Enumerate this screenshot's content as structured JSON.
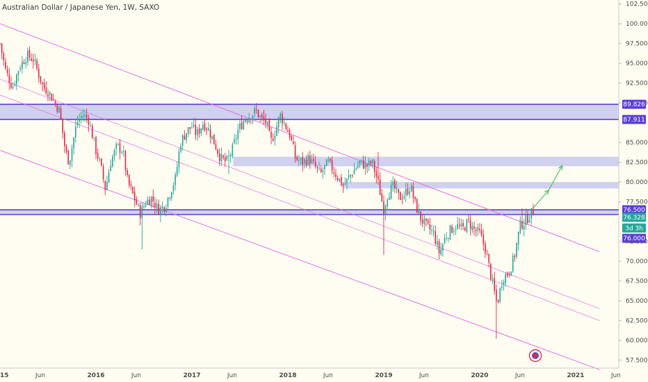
{
  "chart_data": {
    "type": "candlestick",
    "title": "Australian Dollar / Japanese Yen, 1W, SAXO",
    "y_axis": {
      "position": "right",
      "range": [
        56.5,
        103.0
      ],
      "ticks": [
        "102.500",
        "100.000",
        "97.500",
        "95.000",
        "92.500",
        "90.000",
        "85.000",
        "82.500",
        "80.000",
        "77.500",
        "72.500",
        "70.000",
        "67.500",
        "65.000",
        "62.500",
        "60.000",
        "57.500"
      ],
      "tick_values": [
        102.5,
        100,
        97.5,
        95,
        92.5,
        90,
        85,
        82.5,
        80,
        77.5,
        72.5,
        70,
        67.5,
        65,
        62.5,
        60,
        57.5
      ]
    },
    "x_axis": {
      "range": [
        2015.0,
        2021.45
      ],
      "labels": [
        "2015",
        "Jun",
        "2016",
        "Jun",
        "2017",
        "Jun",
        "2018",
        "Jun",
        "2019",
        "Jun",
        "2020",
        "Jun",
        "2021",
        "Jun"
      ],
      "positions": [
        2015.0,
        2015.42,
        2016.0,
        2016.42,
        2017.0,
        2017.42,
        2018.0,
        2018.42,
        2019.0,
        2019.42,
        2020.0,
        2020.42,
        2021.0,
        2021.42
      ]
    },
    "colors": {
      "up": "#26a69a",
      "down": "#e0284a",
      "zone_fill": "#c8c8ee",
      "zone_border": "#5a3ed6",
      "channel": "#e36ee3",
      "arrow": "#43b96b",
      "badge_purple": "#5a3ed6",
      "badge_green": "#26a69a"
    },
    "price_badges": [
      {
        "label": "89.826",
        "value": 89.826,
        "color": "#5a3ed6"
      },
      {
        "label": "87.911",
        "value": 87.911,
        "color": "#5a3ed6"
      },
      {
        "label": "76.500",
        "value": 76.5,
        "color": "#5a3ed6"
      },
      {
        "label": "76.328",
        "value": 75.55,
        "color": "#26a69a"
      },
      {
        "label": "3d 3h",
        "value": 74.2,
        "color": "#26a69a"
      },
      {
        "label": "76.000",
        "value": 72.9,
        "color": "#5a3ed6"
      }
    ],
    "zones": [
      {
        "name": "resistance-zone-upper",
        "from": 87.911,
        "to": 89.826,
        "x_start": 2015.0,
        "bordered": true
      },
      {
        "name": "zone-83",
        "from": 82.0,
        "to": 83.2,
        "x_start": 2017.43,
        "bordered": false
      },
      {
        "name": "zone-80",
        "from": 79.2,
        "to": 80.0,
        "x_start": 2018.57,
        "bordered": false
      },
      {
        "name": "support-zone-76",
        "from": 75.9,
        "to": 76.5,
        "x_start": 2015.0,
        "bordered": true
      }
    ],
    "channel_lines": [
      {
        "name": "channel-top",
        "x1": 2015.0,
        "y1": 100.0,
        "x2": 2021.25,
        "y2": 71.2,
        "width": 1.1
      },
      {
        "name": "channel-mid-1",
        "x1": 2015.0,
        "y1": 93.0,
        "x2": 2021.25,
        "y2": 64.0,
        "width": 0.8
      },
      {
        "name": "channel-mid-2",
        "x1": 2015.0,
        "y1": 91.0,
        "x2": 2021.25,
        "y2": 62.5,
        "width": 0.8
      },
      {
        "name": "channel-bottom",
        "x1": 2015.0,
        "y1": 84.0,
        "x2": 2021.25,
        "y2": 56.3,
        "width": 1.1
      }
    ],
    "projection_arrow": [
      [
        2020.55,
        76.6
      ],
      [
        2020.72,
        79.0
      ],
      [
        2020.86,
        82.1
      ]
    ],
    "anchors": [
      [
        2015.0,
        97.5
      ],
      [
        2015.06,
        94.0
      ],
      [
        2015.13,
        92.0
      ],
      [
        2015.2,
        94.5
      ],
      [
        2015.28,
        96.0
      ],
      [
        2015.35,
        95.5
      ],
      [
        2015.45,
        92.0
      ],
      [
        2015.5,
        91.5
      ],
      [
        2015.55,
        90.5
      ],
      [
        2015.62,
        89.0
      ],
      [
        2015.68,
        84.0
      ],
      [
        2015.72,
        82.5
      ],
      [
        2015.8,
        87.5
      ],
      [
        2015.86,
        88.5
      ],
      [
        2015.92,
        88.0
      ],
      [
        2016.0,
        84.0
      ],
      [
        2016.05,
        82.0
      ],
      [
        2016.1,
        79.0
      ],
      [
        2016.15,
        82.5
      ],
      [
        2016.22,
        84.5
      ],
      [
        2016.28,
        84.0
      ],
      [
        2016.33,
        80.0
      ],
      [
        2016.4,
        78.0
      ],
      [
        2016.46,
        76.0
      ],
      [
        2016.52,
        77.5
      ],
      [
        2016.58,
        78.0
      ],
      [
        2016.65,
        76.5
      ],
      [
        2016.72,
        77.0
      ],
      [
        2016.78,
        79.0
      ],
      [
        2016.83,
        80.5
      ],
      [
        2016.88,
        85.0
      ],
      [
        2016.95,
        86.5
      ],
      [
        2017.0,
        87.0
      ],
      [
        2017.05,
        86.0
      ],
      [
        2017.12,
        87.5
      ],
      [
        2017.18,
        86.5
      ],
      [
        2017.25,
        84.5
      ],
      [
        2017.3,
        83.0
      ],
      [
        2017.36,
        82.5
      ],
      [
        2017.42,
        84.0
      ],
      [
        2017.48,
        86.5
      ],
      [
        2017.55,
        88.0
      ],
      [
        2017.62,
        88.5
      ],
      [
        2017.67,
        89.0
      ],
      [
        2017.72,
        88.0
      ],
      [
        2017.78,
        87.5
      ],
      [
        2017.82,
        85.0
      ],
      [
        2017.87,
        86.5
      ],
      [
        2017.92,
        88.5
      ],
      [
        2017.98,
        87.0
      ],
      [
        2018.02,
        86.0
      ],
      [
        2018.08,
        83.0
      ],
      [
        2018.15,
        82.5
      ],
      [
        2018.22,
        83.0
      ],
      [
        2018.28,
        82.0
      ],
      [
        2018.34,
        81.0
      ],
      [
        2018.42,
        82.5
      ],
      [
        2018.5,
        81.0
      ],
      [
        2018.58,
        79.5
      ],
      [
        2018.66,
        81.0
      ],
      [
        2018.75,
        82.5
      ],
      [
        2018.82,
        82.0
      ],
      [
        2018.88,
        82.5
      ],
      [
        2018.94,
        80.0
      ],
      [
        2019.0,
        76.5
      ],
      [
        2019.04,
        78.5
      ],
      [
        2019.1,
        79.5
      ],
      [
        2019.16,
        78.0
      ],
      [
        2019.22,
        78.5
      ],
      [
        2019.28,
        79.5
      ],
      [
        2019.32,
        77.5
      ],
      [
        2019.38,
        75.5
      ],
      [
        2019.44,
        74.5
      ],
      [
        2019.52,
        73.5
      ],
      [
        2019.58,
        71.0
      ],
      [
        2019.64,
        73.0
      ],
      [
        2019.7,
        74.0
      ],
      [
        2019.76,
        74.5
      ],
      [
        2019.82,
        74.0
      ],
      [
        2019.88,
        75.0
      ],
      [
        2019.94,
        74.0
      ],
      [
        2020.0,
        73.5
      ],
      [
        2020.06,
        71.5
      ],
      [
        2020.12,
        68.0
      ],
      [
        2020.18,
        64.5
      ],
      [
        2020.24,
        68.0
      ],
      [
        2020.3,
        68.5
      ],
      [
        2020.36,
        70.5
      ],
      [
        2020.42,
        74.5
      ],
      [
        2020.47,
        75.0
      ],
      [
        2020.52,
        75.8
      ],
      [
        2020.56,
        76.3
      ]
    ],
    "wicks": [
      {
        "x": 2016.48,
        "low": 71.5
      },
      {
        "x": 2017.38,
        "low": 81.0
      },
      {
        "x": 2018.94,
        "high": 83.8
      },
      {
        "x": 2019.0,
        "low": 70.8
      },
      {
        "x": 2020.18,
        "low": 60.2
      },
      {
        "x": 2020.45,
        "high": 76.7
      }
    ]
  }
}
